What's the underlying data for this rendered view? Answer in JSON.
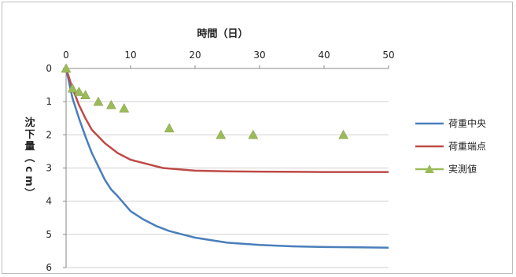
{
  "chart_data": {
    "type": "line",
    "title": "時間（日）",
    "ylabel": "沈下量（cm）",
    "xlim": [
      0,
      50
    ],
    "ylim": [
      0,
      6
    ],
    "y_inverted": true,
    "x_axis_position": "top",
    "x_ticks": [
      "0",
      "10",
      "20",
      "30",
      "40",
      "50"
    ],
    "y_ticks": [
      "0",
      "1",
      "2",
      "3",
      "4",
      "5",
      "6"
    ],
    "grid": "horizontal",
    "legend_position": "right",
    "series": [
      {
        "name": "荷重中央",
        "color": "#4a7ebb",
        "marker": "none",
        "x": [
          0,
          1,
          2,
          3,
          4,
          5,
          6,
          7,
          8,
          10,
          12,
          14,
          16,
          18,
          20,
          25,
          30,
          35,
          40,
          45,
          50
        ],
        "y": [
          0,
          0.9,
          1.5,
          2.05,
          2.55,
          2.95,
          3.35,
          3.65,
          3.85,
          4.3,
          4.55,
          4.75,
          4.9,
          5.0,
          5.1,
          5.25,
          5.32,
          5.36,
          5.38,
          5.39,
          5.4
        ]
      },
      {
        "name": "荷重端点",
        "color": "#be4b48",
        "marker": "none",
        "x": [
          0,
          1,
          2,
          3,
          4,
          5,
          6,
          8,
          10,
          12,
          15,
          20,
          25,
          30,
          40,
          50
        ],
        "y": [
          0,
          0.6,
          1.1,
          1.5,
          1.85,
          2.05,
          2.25,
          2.55,
          2.75,
          2.85,
          3.0,
          3.08,
          3.1,
          3.11,
          3.12,
          3.12
        ]
      },
      {
        "name": "実測値",
        "color": "#9bbb59",
        "marker": "triangle",
        "line": false,
        "x": [
          0,
          1,
          2,
          3,
          5,
          7,
          9,
          16,
          24,
          29,
          43
        ],
        "y": [
          0,
          0.6,
          0.7,
          0.8,
          1.0,
          1.1,
          1.2,
          1.8,
          2.0,
          2.0,
          2.0
        ]
      }
    ]
  }
}
